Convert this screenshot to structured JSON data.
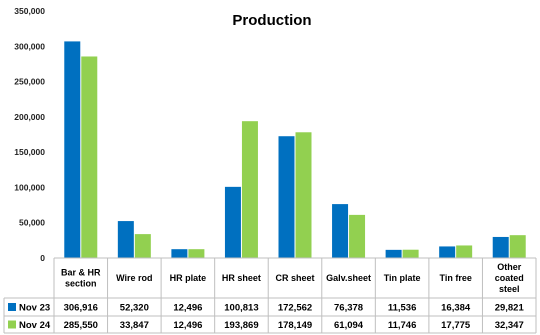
{
  "chart_data": {
    "type": "bar",
    "title": "Production",
    "categories": [
      [
        "Bar & HR",
        "section"
      ],
      [
        "Wire rod"
      ],
      [
        "HR plate"
      ],
      [
        "HR sheet"
      ],
      [
        "CR sheet"
      ],
      [
        "Galv.sheet"
      ],
      [
        "Tin plate"
      ],
      [
        "Tin free"
      ],
      [
        "Other",
        "coated",
        "steel"
      ]
    ],
    "series": [
      {
        "name": "Nov 23",
        "color": "#0070C0",
        "values": [
          306916,
          52320,
          12496,
          100813,
          172562,
          76378,
          11536,
          16384,
          29821
        ],
        "labels": [
          "306,916",
          "52,320",
          "12,496",
          "100,813",
          "172,562",
          "76,378",
          "11,536",
          "16,384",
          "29,821"
        ]
      },
      {
        "name": "Nov 24",
        "color": "#92D050",
        "values": [
          285550,
          33847,
          12496,
          193869,
          178149,
          61094,
          11746,
          17775,
          32347
        ],
        "labels": [
          "285,550",
          "33,847",
          "12,496",
          "193,869",
          "178,149",
          "61,094",
          "11,746",
          "17,775",
          "32,347"
        ]
      }
    ],
    "ylim": [
      0,
      350000
    ],
    "yticks": [
      0,
      50000,
      100000,
      150000,
      200000,
      250000,
      300000,
      350000
    ],
    "ytick_labels": [
      "0",
      "50,000",
      "100,000",
      "150,000",
      "200,000",
      "250,000",
      "300,000",
      "350,000"
    ],
    "grid": false,
    "legend": "data-table"
  }
}
